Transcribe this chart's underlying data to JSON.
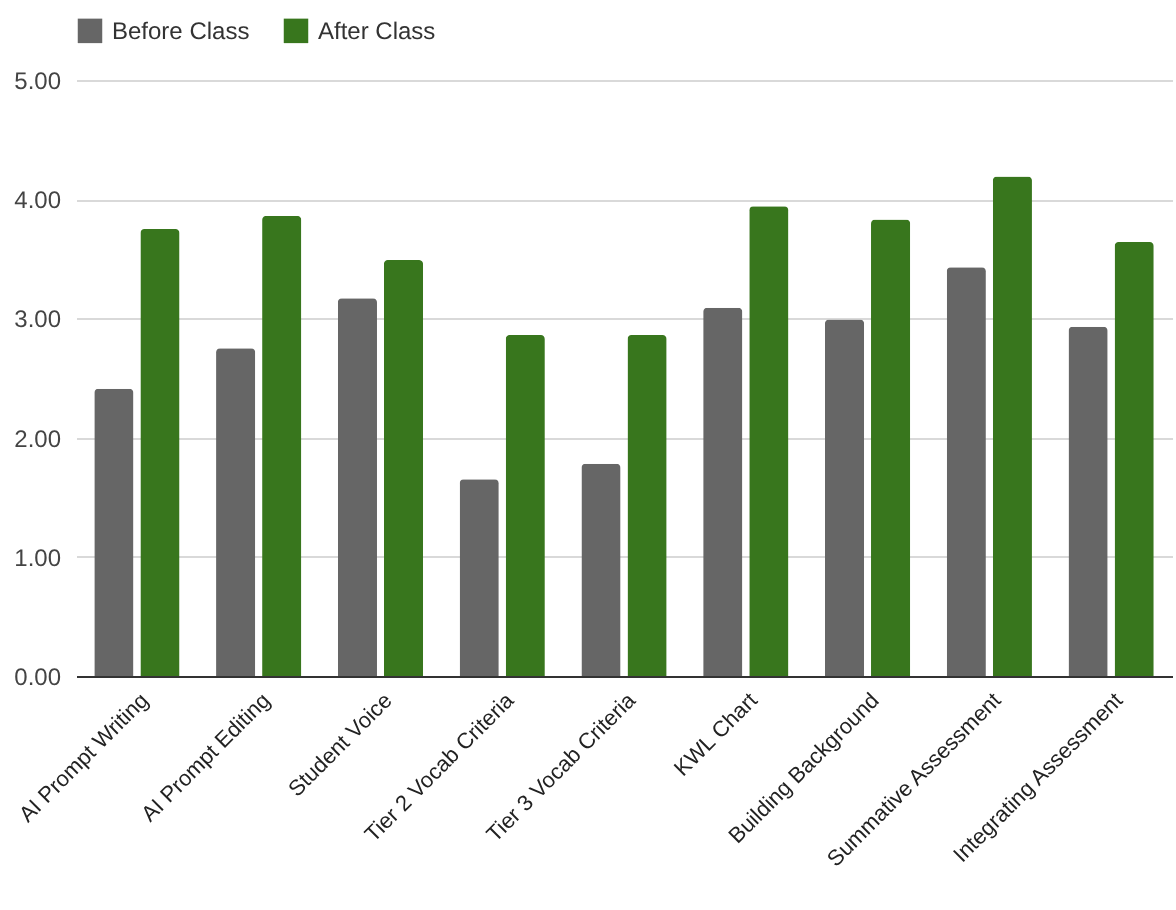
{
  "chart_data": {
    "type": "bar",
    "categories": [
      "AI Prompt Writing",
      "AI Prompt Editing",
      "Student Voice",
      "Tier 2 Vocab Criteria",
      "Tier 3 Vocab Criteria",
      "KWL Chart",
      "Building Background",
      "Summative Assessment",
      "Integrating Assessment"
    ],
    "series": [
      {
        "name": "Before Class",
        "color": "#666666",
        "values": [
          2.41,
          2.75,
          3.17,
          1.65,
          1.78,
          3.09,
          2.99,
          3.43,
          2.93
        ]
      },
      {
        "name": "After Class",
        "color": "#38761d",
        "values": [
          3.75,
          3.86,
          3.49,
          2.86,
          2.86,
          3.94,
          3.83,
          4.19,
          3.64
        ]
      }
    ],
    "ylim": [
      0,
      5
    ],
    "yticks": [
      {
        "value": 0,
        "label": "0.00"
      },
      {
        "value": 1,
        "label": "1.00"
      },
      {
        "value": 2,
        "label": "2.00"
      },
      {
        "value": 3,
        "label": "3.00"
      },
      {
        "value": 4,
        "label": "4.00"
      },
      {
        "value": 5,
        "label": "5.00"
      }
    ],
    "grid": "y",
    "legend": "top"
  }
}
